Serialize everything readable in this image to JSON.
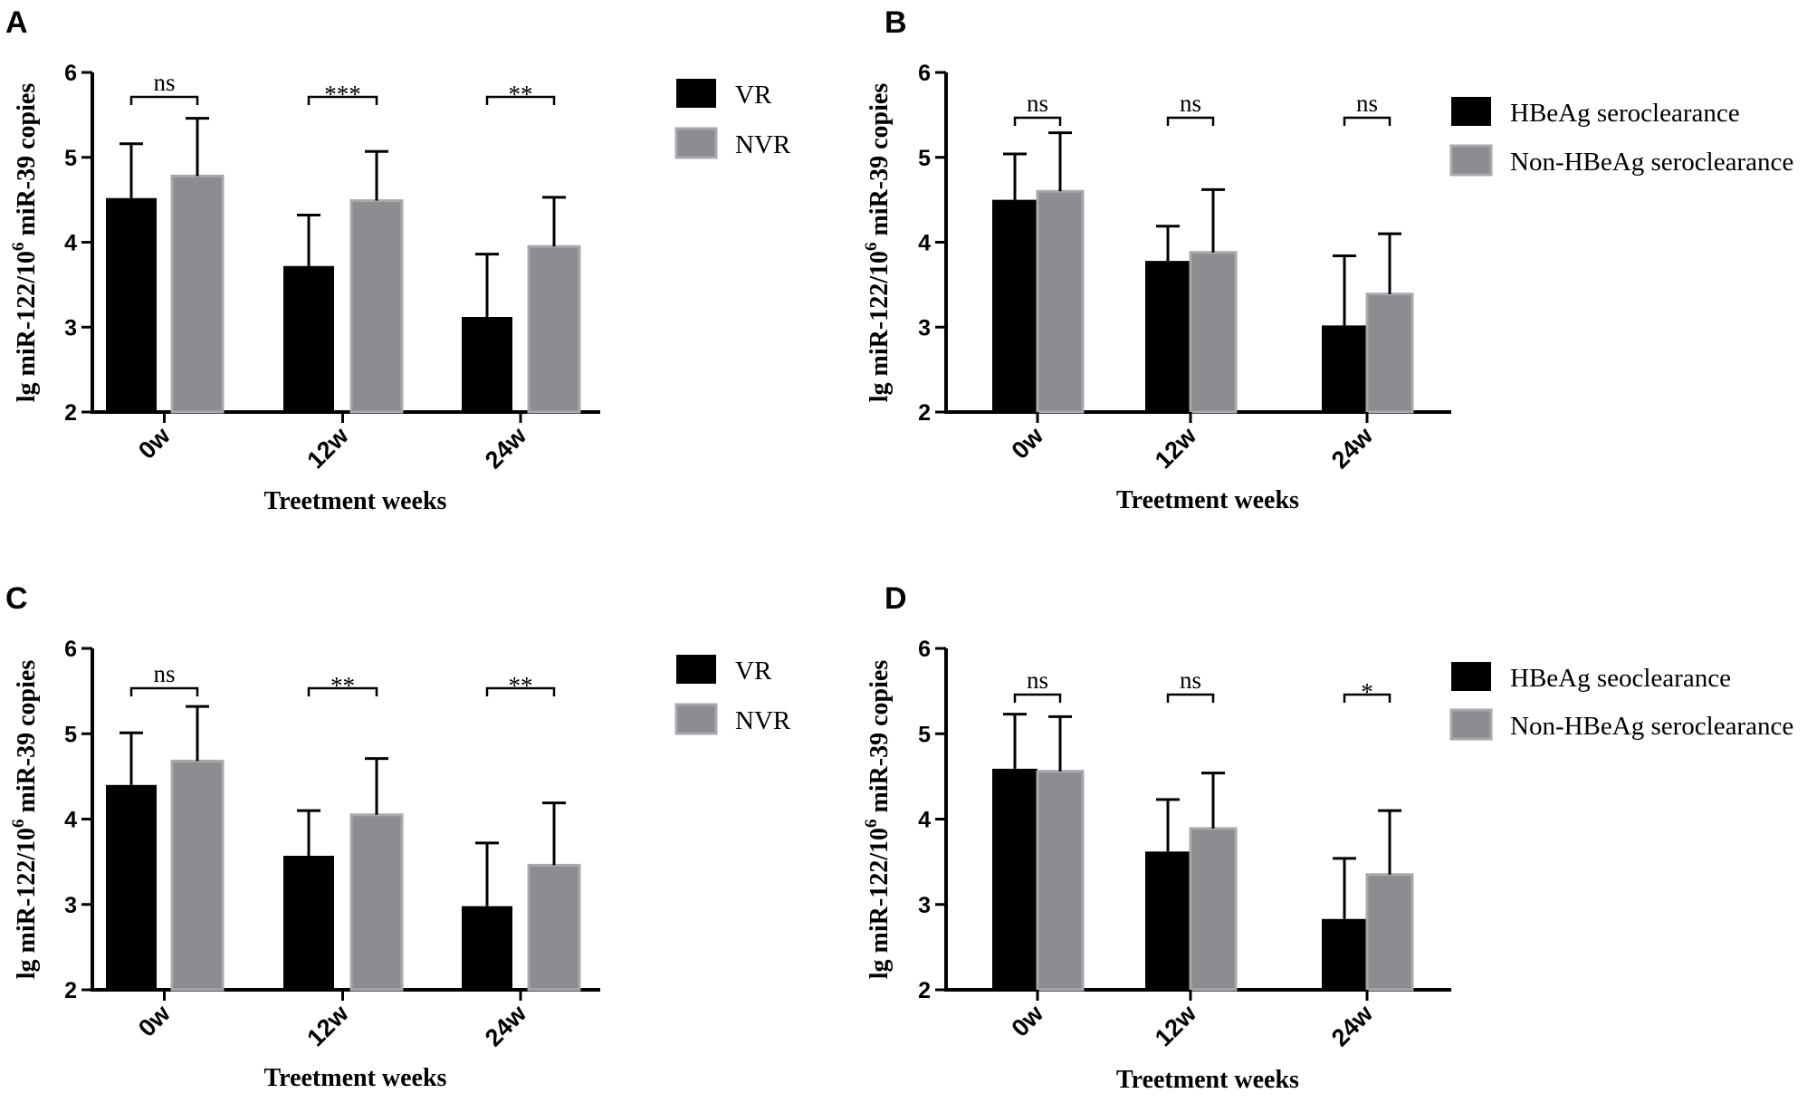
{
  "colors": {
    "series1": "#000000",
    "series2": "#8c8c91",
    "series2_edge": "#a9a9ad",
    "axis": "#000000"
  },
  "chart_data": [
    {
      "panel": "A",
      "type": "bar",
      "categories": [
        "0w",
        "12w",
        "24w"
      ],
      "xlabel": "Treetment weeks",
      "ylabel_main": "lg miR-122/10",
      "ylabel_sup": "6",
      "ylabel_tail": " miR-39 copies",
      "ylim": [
        2,
        6
      ],
      "yticks": [
        "2",
        "3",
        "4",
        "5",
        "6"
      ],
      "series": [
        {
          "name": "VR",
          "values": [
            4.52,
            3.72,
            3.12
          ],
          "errors": [
            0.64,
            0.6,
            0.74
          ]
        },
        {
          "name": "NVR",
          "values": [
            4.78,
            4.49,
            3.95
          ],
          "errors": [
            0.68,
            0.58,
            0.58
          ]
        }
      ],
      "significance": [
        "ns",
        "***",
        "**"
      ]
    },
    {
      "panel": "B",
      "type": "bar",
      "categories": [
        "0w",
        "12w",
        "24w"
      ],
      "xlabel": "Treetment weeks",
      "ylabel_main": "lg miR-122/10",
      "ylabel_sup": "6",
      "ylabel_tail": " miR-39 copies",
      "ylim": [
        2,
        6
      ],
      "yticks": [
        "2",
        "3",
        "4",
        "5",
        "6"
      ],
      "series": [
        {
          "name": "HBeAg seroclearance",
          "values": [
            4.5,
            3.78,
            3.02
          ],
          "errors": [
            0.54,
            0.41,
            0.82
          ]
        },
        {
          "name": "Non-HBeAg seroclearance",
          "values": [
            4.6,
            3.88,
            3.39
          ],
          "errors": [
            0.69,
            0.74,
            0.71
          ]
        }
      ],
      "significance": [
        "ns",
        "ns",
        "ns"
      ]
    },
    {
      "panel": "C",
      "type": "bar",
      "categories": [
        "0w",
        "12w",
        "24w"
      ],
      "xlabel": "Treetment weeks",
      "ylabel_main": "lg miR-122/10",
      "ylabel_sup": "6",
      "ylabel_tail": " miR-39 copies",
      "ylim": [
        2,
        6
      ],
      "yticks": [
        "2",
        "3",
        "4",
        "5",
        "6"
      ],
      "series": [
        {
          "name": "VR",
          "values": [
            4.4,
            3.57,
            2.98
          ],
          "errors": [
            0.61,
            0.53,
            0.74
          ]
        },
        {
          "name": "NVR",
          "values": [
            4.68,
            4.05,
            3.46
          ],
          "errors": [
            0.64,
            0.66,
            0.73
          ]
        }
      ],
      "significance": [
        "ns",
        "**",
        "**"
      ]
    },
    {
      "panel": "D",
      "type": "bar",
      "categories": [
        "0w",
        "12w",
        "24w"
      ],
      "xlabel": "Treetment weeks",
      "ylabel_main": "lg miR-122/10",
      "ylabel_sup": "6",
      "ylabel_tail": " miR-39 copies",
      "ylim": [
        2,
        6
      ],
      "yticks": [
        "2",
        "3",
        "4",
        "5",
        "6"
      ],
      "series": [
        {
          "name": "HBeAg seoclearance",
          "values": [
            4.59,
            3.62,
            2.83
          ],
          "errors": [
            0.64,
            0.61,
            0.71
          ]
        },
        {
          "name": "Non-HBeAg seroclearance",
          "values": [
            4.56,
            3.89,
            3.35
          ],
          "errors": [
            0.64,
            0.65,
            0.75
          ]
        }
      ],
      "significance": [
        "ns",
        "ns",
        "*"
      ]
    }
  ]
}
